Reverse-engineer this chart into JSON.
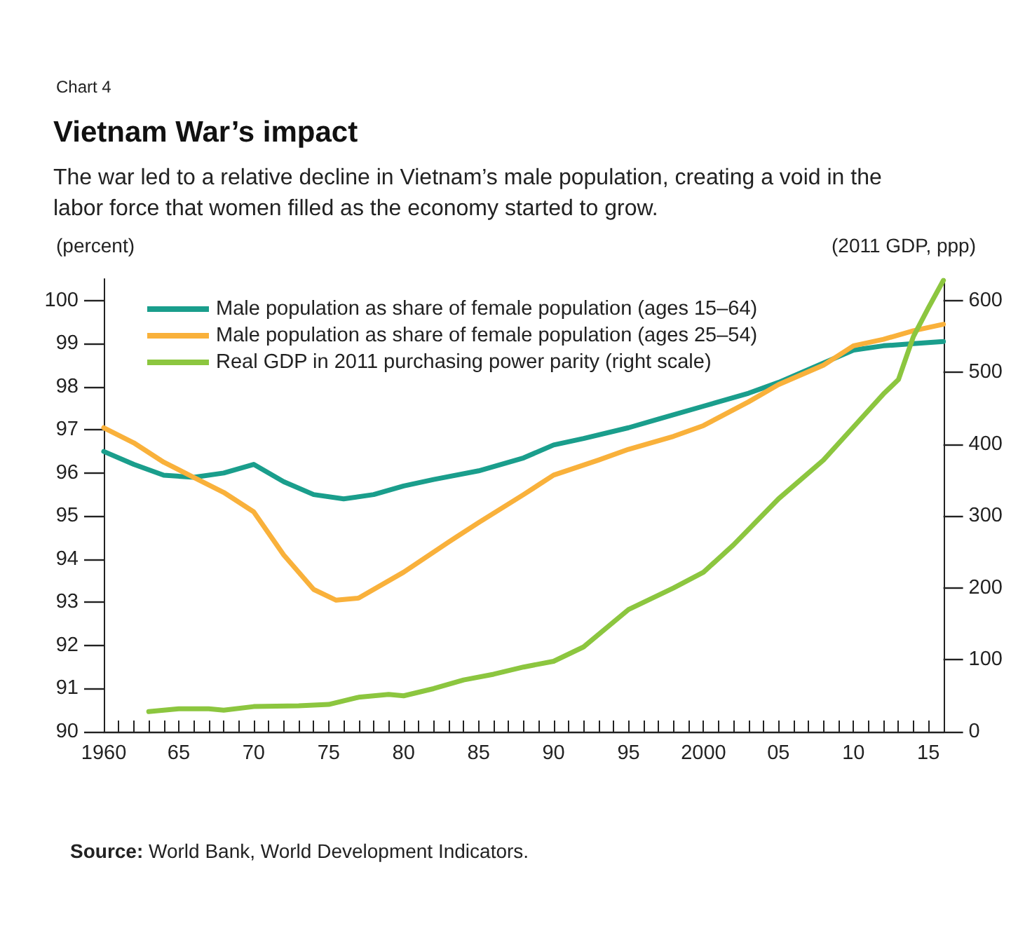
{
  "chart_data": {
    "type": "line",
    "title": "Vietnam War’s impact",
    "subtitle": "The war led to a relative decline in Vietnam’s male population, creating a void in the labor force that women filled as the economy started to grow.",
    "ylabel": "(percent)",
    "y2label": "(2011 GDP, ppp)",
    "annotations": [
      "Chart 4",
      "Source: World Bank, World Development Indicators."
    ],
    "xlim": [
      1960,
      2016
    ],
    "xticks": [
      1960,
      {
        "value": 1961,
        "label": null
      },
      {
        "value": 1962,
        "label": null
      },
      {
        "value": 1963,
        "label": null
      },
      {
        "value": 1964,
        "label": null
      },
      {
        "value": 1965,
        "label": "65"
      },
      {
        "value": 1966,
        "label": null
      },
      {
        "value": 1967,
        "label": null
      },
      {
        "value": 1968,
        "label": null
      },
      {
        "value": 1969,
        "label": null
      },
      {
        "value": 1970,
        "label": "70"
      },
      {
        "value": 1971,
        "label": null
      },
      {
        "value": 1972,
        "label": null
      },
      {
        "value": 1973,
        "label": null
      },
      {
        "value": 1974,
        "label": null
      },
      {
        "value": 1975,
        "label": "75"
      },
      {
        "value": 1976,
        "label": null
      },
      {
        "value": 1977,
        "label": null
      },
      {
        "value": 1978,
        "label": null
      },
      {
        "value": 1979,
        "label": null
      },
      {
        "value": 1980,
        "label": "80"
      },
      {
        "value": 1981,
        "label": null
      },
      {
        "value": 1982,
        "label": null
      },
      {
        "value": 1983,
        "label": null
      },
      {
        "value": 1984,
        "label": null
      },
      {
        "value": 1985,
        "label": "85"
      },
      {
        "value": 1986,
        "label": null
      },
      {
        "value": 1987,
        "label": null
      },
      {
        "value": 1988,
        "label": null
      },
      {
        "value": 1989,
        "label": null
      },
      {
        "value": 1990,
        "label": "90"
      },
      {
        "value": 1991,
        "label": null
      },
      {
        "value": 1992,
        "label": null
      },
      {
        "value": 1993,
        "label": null
      },
      {
        "value": 1994,
        "label": null
      },
      {
        "value": 1995,
        "label": "95"
      },
      {
        "value": 1996,
        "label": null
      },
      {
        "value": 1997,
        "label": null
      },
      {
        "value": 1998,
        "label": null
      },
      {
        "value": 1999,
        "label": null
      },
      2000,
      {
        "value": 2001,
        "label": null
      },
      {
        "value": 2002,
        "label": null
      },
      {
        "value": 2003,
        "label": null
      },
      {
        "value": 2004,
        "label": null
      },
      {
        "value": 2005,
        "label": "05"
      },
      {
        "value": 2006,
        "label": null
      },
      {
        "value": 2007,
        "label": null
      },
      {
        "value": 2008,
        "label": null
      },
      {
        "value": 2009,
        "label": null
      },
      {
        "value": 2010,
        "label": "10"
      },
      {
        "value": 2011,
        "label": null
      },
      {
        "value": 2012,
        "label": null
      },
      {
        "value": 2013,
        "label": null
      },
      {
        "value": 2014,
        "label": null
      },
      {
        "value": 2015,
        "label": "15"
      }
    ],
    "ylim": [
      90,
      100.5
    ],
    "yticks": [
      90,
      91,
      92,
      93,
      94,
      95,
      96,
      97,
      98,
      99,
      100
    ],
    "y2lim": [
      0,
      630
    ],
    "y2ticks": [
      0,
      100,
      200,
      300,
      400,
      500,
      600
    ],
    "legend": "top left",
    "grid": false,
    "marker": "none",
    "line_style": "solid",
    "series": [
      {
        "name": "Male population as share of female population (ages 15–64)",
        "color": "#1a9e8c",
        "x": [
          1960,
          1962,
          1964,
          1966,
          1968,
          1970,
          1972,
          1974,
          1976,
          1978,
          1980,
          1982,
          1985,
          1988,
          1990,
          1992,
          1995,
          1997,
          2000,
          2003,
          2005,
          2008,
          2010,
          2012,
          2014,
          2016
        ],
        "values": [
          96.5,
          96.2,
          95.95,
          95.9,
          96.0,
          96.2,
          95.8,
          95.5,
          95.4,
          95.5,
          95.7,
          95.85,
          96.05,
          96.35,
          96.65,
          96.8,
          97.05,
          97.25,
          97.55,
          97.85,
          98.1,
          98.55,
          98.85,
          98.95,
          99.0,
          99.05
        ]
      },
      {
        "name": "Male population as share of female population (ages 25–54)",
        "color": "#f9b13b",
        "x": [
          1960,
          1962,
          1964,
          1966,
          1968,
          1970,
          1972,
          1974,
          1975.5,
          1977,
          1980,
          1983,
          1985,
          1988,
          1990,
          1993,
          1995,
          1998,
          2000,
          2003,
          2005,
          2008,
          2010,
          2012,
          2014,
          2016
        ],
        "values": [
          97.05,
          96.7,
          96.25,
          95.9,
          95.55,
          95.1,
          94.1,
          93.3,
          93.05,
          93.1,
          93.7,
          94.4,
          94.85,
          95.5,
          95.95,
          96.3,
          96.55,
          96.85,
          97.1,
          97.65,
          98.05,
          98.5,
          98.95,
          99.1,
          99.3,
          99.45
        ]
      },
      {
        "name": "Real GDP in 2011 purchasing power parity (right scale)",
        "color": "#8cc63f",
        "axis": "y2",
        "x": [
          1963,
          1965,
          1967,
          1968,
          1970,
          1973,
          1975,
          1977,
          1979,
          1980,
          1982,
          1984,
          1986,
          1988,
          1990,
          1992,
          1995,
          1998,
          2000,
          2002,
          2005,
          2008,
          2010,
          2012,
          2013,
          2014,
          2015,
          2016
        ],
        "values": [
          28,
          32,
          32,
          30,
          35,
          36,
          38,
          48,
          52,
          50,
          60,
          72,
          80,
          90,
          98,
          118,
          170,
          200,
          222,
          260,
          324,
          378,
          424,
          470,
          490,
          550,
          590,
          628
        ]
      }
    ]
  }
}
